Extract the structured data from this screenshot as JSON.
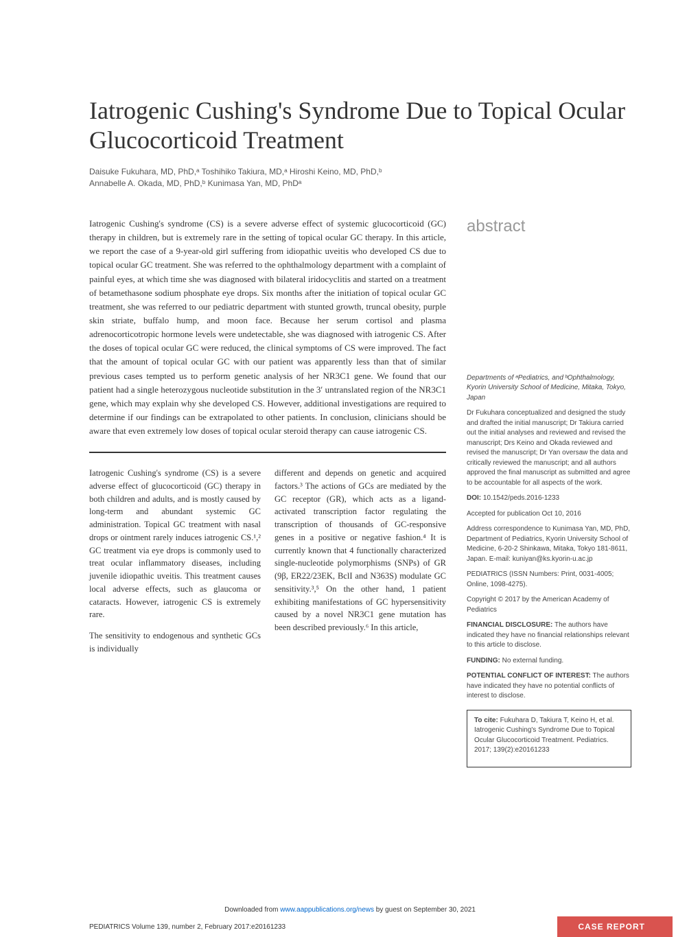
{
  "title": "Iatrogenic Cushing's Syndrome Due to Topical Ocular Glucocorticoid Treatment",
  "authors_line1": "Daisuke Fukuhara, MD, PhD,ᵃ Toshihiko Takiura, MD,ᵃ Hiroshi Keino, MD, PhD,ᵇ",
  "authors_line2": "Annabelle A. Okada, MD, PhD,ᵇ Kunimasa Yan, MD, PhDᵃ",
  "abstract_label": "abstract",
  "abstract_text": "Iatrogenic Cushing's syndrome (CS) is a severe adverse effect of systemic glucocorticoid (GC) therapy in children, but is extremely rare in the setting of topical ocular GC therapy. In this article, we report the case of a 9-year-old girl suffering from idiopathic uveitis who developed CS due to topical ocular GC treatment. She was referred to the ophthalmology department with a complaint of painful eyes, at which time she was diagnosed with bilateral iridocyclitis and started on a treatment of betamethasone sodium phosphate eye drops. Six months after the initiation of topical ocular GC treatment, she was referred to our pediatric department with stunted growth, truncal obesity, purple skin striate, buffalo hump, and moon face. Because her serum cortisol and plasma adrenocorticotropic hormone levels were undetectable, she was diagnosed with iatrogenic CS. After the doses of topical ocular GC were reduced, the clinical symptoms of CS were improved. The fact that the amount of topical ocular GC with our patient was apparently less than that of similar previous cases tempted us to perform genetic analysis of her NR3C1 gene. We found that our patient had a single heterozygous nucleotide substitution in the 3′ untranslated region of the NR3C1 gene, which may explain why she developed CS. However, additional investigations are required to determine if our findings can be extrapolated to other patients. In conclusion, clinicians should be aware that even extremely low doses of topical ocular steroid therapy can cause iatrogenic CS.",
  "col1_p1": "Iatrogenic Cushing's syndrome (CS) is a severe adverse effect of glucocorticoid (GC) therapy in both children and adults, and is mostly caused by long-term and abundant systemic GC administration. Topical GC treatment with nasal drops or ointment rarely induces iatrogenic CS.¹͏,² GC treatment via eye drops is commonly used to treat ocular inflammatory diseases, including juvenile idiopathic uveitis. This treatment causes local adverse effects, such as glaucoma or cataracts. However, iatrogenic CS is extremely rare.",
  "col1_p2": "The sensitivity to endogenous and synthetic GCs is individually",
  "col2_p1": "different and depends on genetic and acquired factors.³ The actions of GCs are mediated by the GC receptor (GR), which acts as a ligand-activated transcription factor regulating the transcription of thousands of GC-responsive genes in a positive or negative fashion.⁴ It is currently known that 4 functionally characterized single-nucleotide polymorphisms (SNPs) of GR (9β, ER22/23EK, BclI and N363S) modulate GC sensitivity.³͏,⁵ On the other hand, 1 patient exhibiting manifestations of GC hypersensitivity caused by a novel NR3C1 gene mutation has been described previously.⁶ In this article,",
  "sidebar": {
    "affiliation": "Departments of ᵃPediatrics, and ᵇOphthalmology, Kyorin University School of Medicine, Mitaka, Tokyo, Japan",
    "contribution": "Dr Fukuhara conceptualized and designed the study and drafted the initial manuscript; Dr Takiura carried out the initial analyses and reviewed and revised the manuscript; Drs Keino and Okada reviewed and revised the manuscript; Dr Yan oversaw the data and critically reviewed the manuscript; and all authors approved the final manuscript as submitted and agree to be accountable for all aspects of the work.",
    "doi_label": "DOI:",
    "doi": " 10.1542/peds.2016-1233",
    "accepted": "Accepted for publication Oct 10, 2016",
    "correspondence": "Address correspondence to Kunimasa Yan, MD, PhD, Department of Pediatrics, Kyorin University School of Medicine, 6-20-2 Shinkawa, Mitaka, Tokyo 181-8611, Japan. E-mail: kuniyan@ks.kyorin-u.ac.jp",
    "issn": "PEDIATRICS (ISSN Numbers: Print, 0031-4005; Online, 1098-4275).",
    "copyright": "Copyright © 2017 by the American Academy of Pediatrics",
    "disclosure_label": "FINANCIAL DISCLOSURE:",
    "disclosure": " The authors have indicated they have no financial relationships relevant to this article to disclose.",
    "funding_label": "FUNDING:",
    "funding": " No external funding.",
    "conflict_label": "POTENTIAL CONFLICT OF INTEREST:",
    "conflict": " The authors have indicated they have no potential conflicts of interest to disclose.",
    "cite_label": "To cite:",
    "cite": " Fukuhara D, Takiura T, Keino H, et al. Iatrogenic Cushing's Syndrome Due to Topical Ocular Glucocorticoid Treatment. Pediatrics. 2017; 139(2):e20161233"
  },
  "footer": {
    "download_prefix": "Downloaded from ",
    "download_link": "www.aappublications.org/news",
    "download_suffix": " by guest on September 30, 2021",
    "left": "PEDIATRICS Volume 139, number 2, February 2017:e20161233",
    "right": "CASE REPORT"
  },
  "colors": {
    "background": "#ffffff",
    "text": "#333333",
    "abstract_label": "#999999",
    "link": "#0066cc",
    "accent": "#d9534f"
  }
}
